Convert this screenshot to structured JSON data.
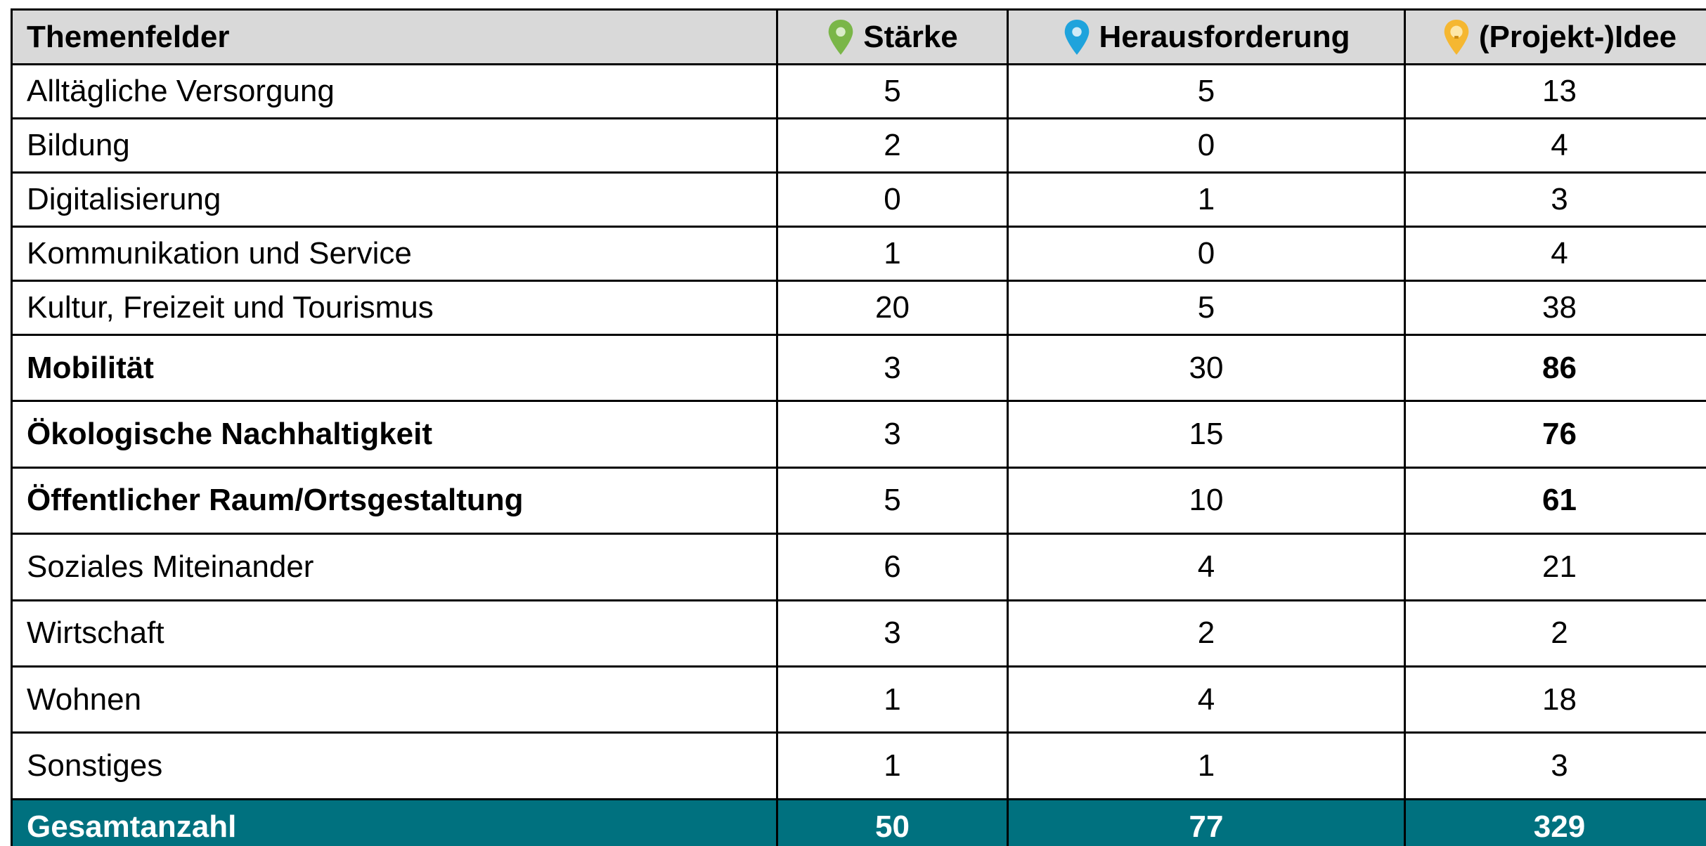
{
  "table": {
    "header": [
      "Themenfelder",
      "Stärke",
      "Herausforderung",
      "(Projekt-)Idee"
    ],
    "rows": [
      {
        "cells": [
          "Alltägliche Versorgung",
          "5",
          "5",
          "13"
        ]
      },
      {
        "cells": [
          "Bildung",
          "2",
          "0",
          "4"
        ]
      },
      {
        "cells": [
          "Digitalisierung",
          "0",
          "1",
          "3"
        ]
      },
      {
        "cells": [
          "Kommunikation und Service",
          "1",
          "0",
          "4"
        ]
      },
      {
        "cells": [
          "Kultur, Freizeit und Tourismus",
          "20",
          "5",
          "38"
        ]
      },
      {
        "cells": [
          "Mobilität",
          "3",
          "30",
          "86"
        ],
        "bold": true
      },
      {
        "cells": [
          "Ökologische Nachhaltigkeit",
          "3",
          "15",
          "76"
        ],
        "bold": true
      },
      {
        "cells": [
          "Öffentlicher Raum/Ortsgestaltung",
          "5",
          "10",
          "61"
        ],
        "bold": true
      },
      {
        "cells": [
          "Soziales Miteinander",
          "6",
          "4",
          "21"
        ]
      },
      {
        "cells": [
          "Wirtschaft",
          "3",
          "2",
          "2"
        ]
      },
      {
        "cells": [
          "Wohnen",
          "1",
          "4",
          "18"
        ]
      },
      {
        "cells": [
          "Sonstiges",
          "1",
          "1",
          "3"
        ]
      }
    ],
    "footer": [
      "Gesamtanzahl",
      "50",
      "77",
      "329"
    ]
  }
}
